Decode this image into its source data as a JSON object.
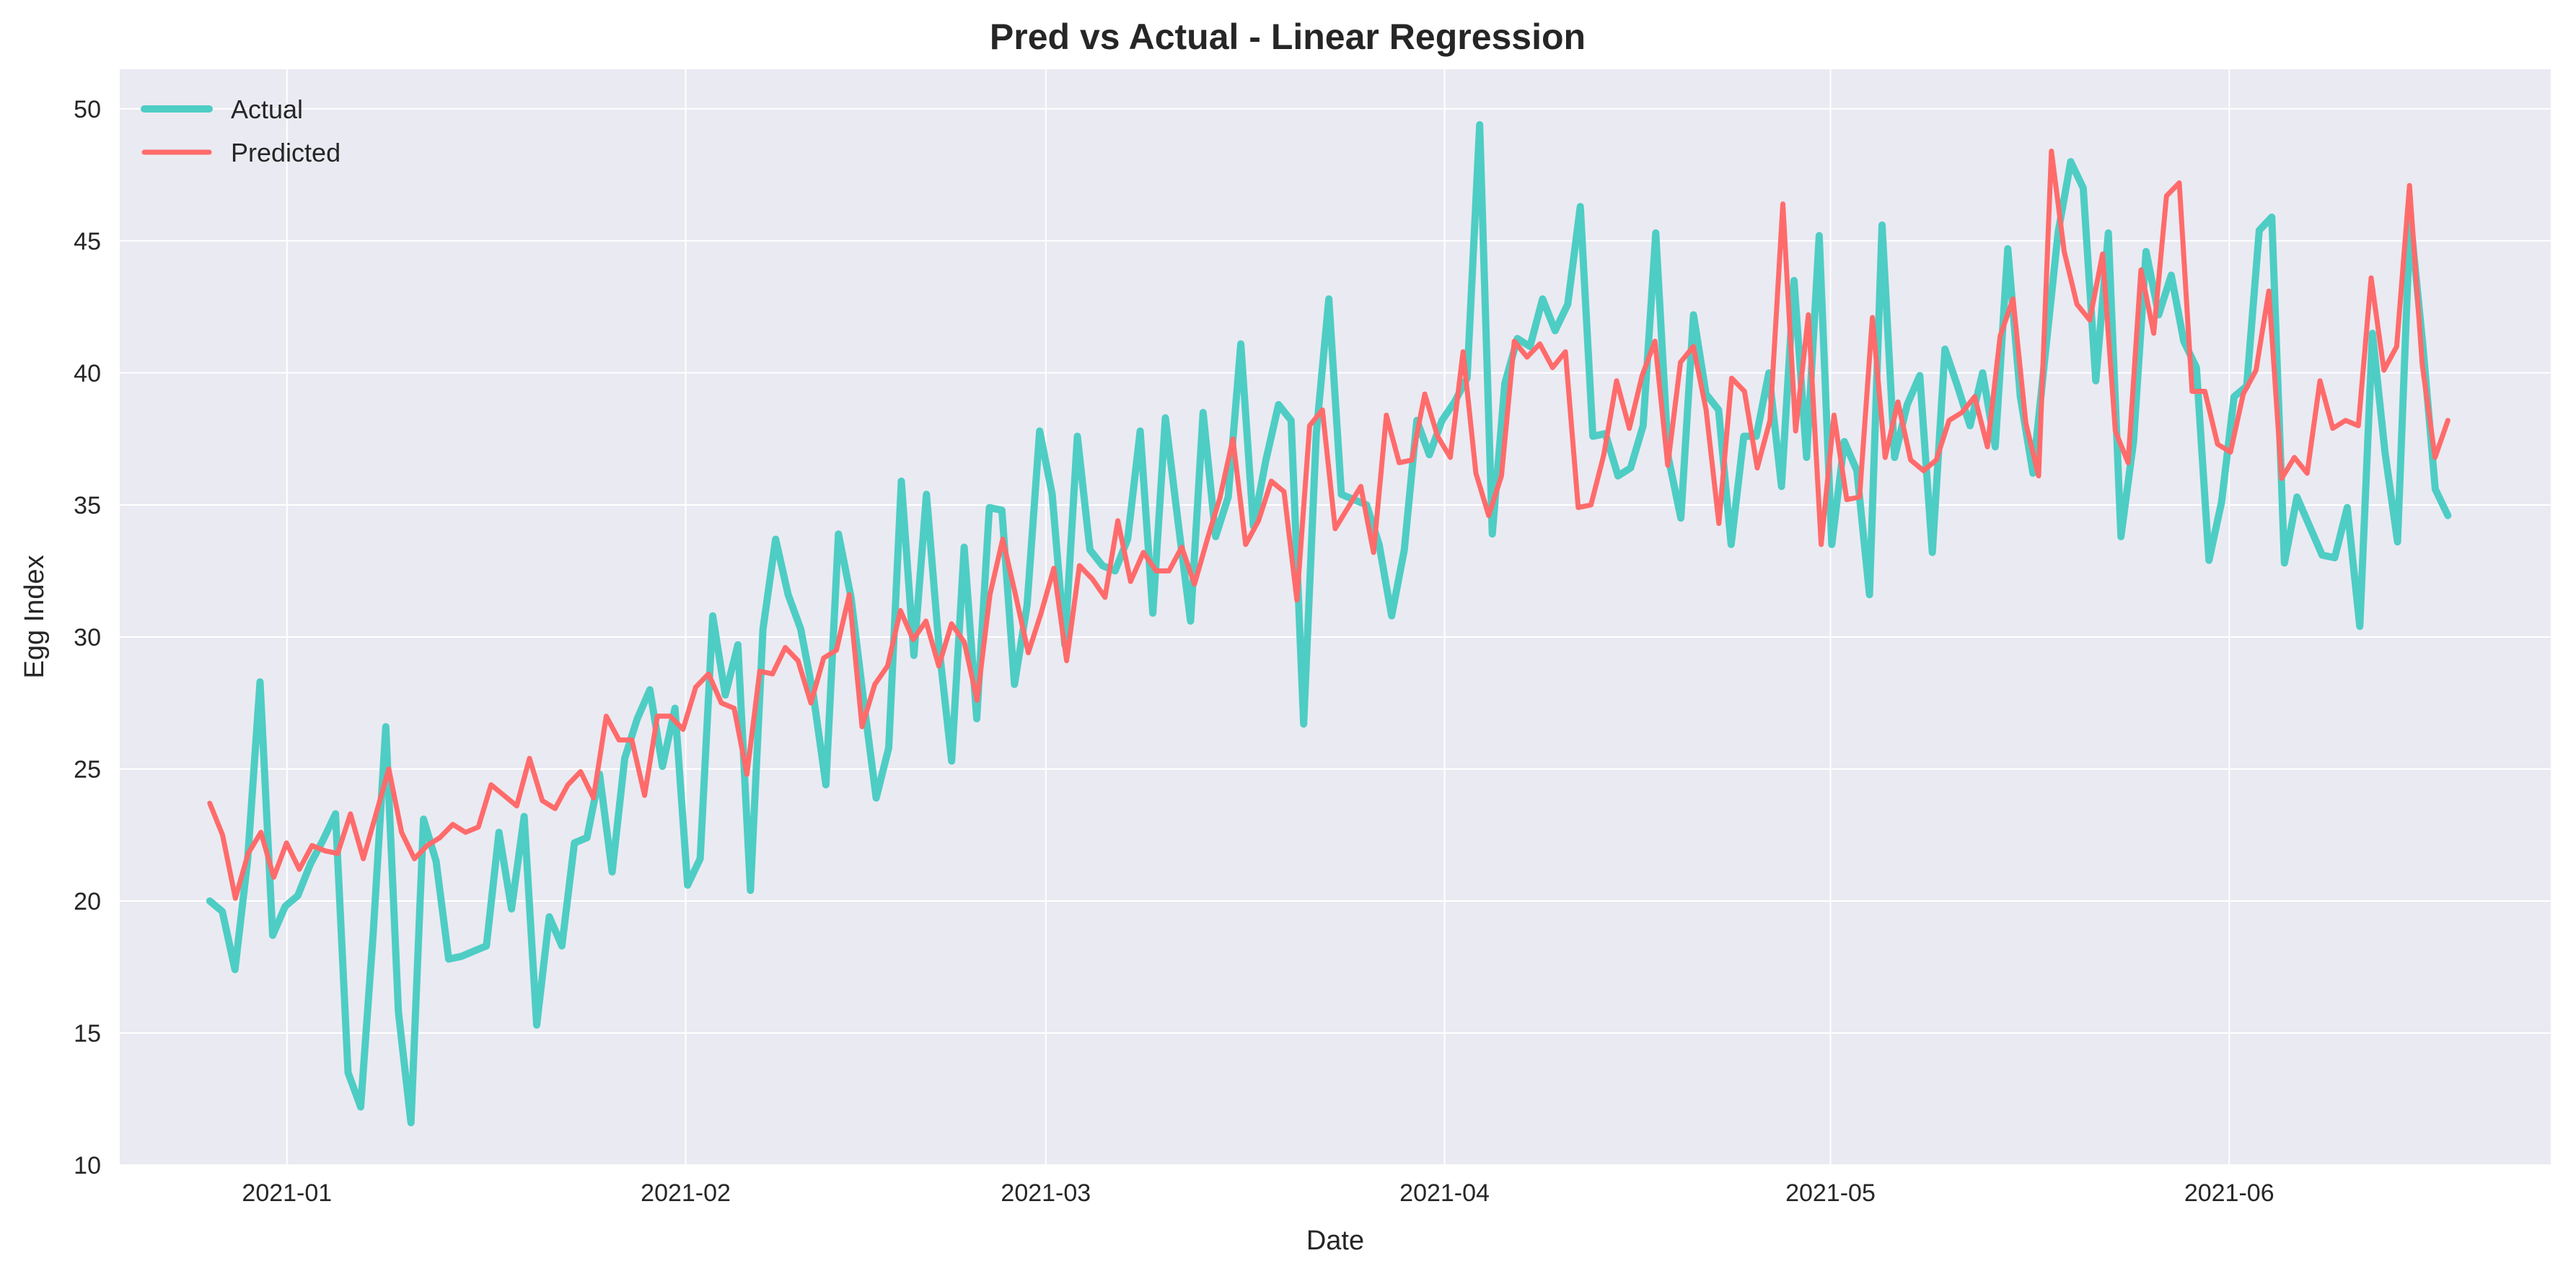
{
  "chart_data": {
    "type": "line",
    "title": "Pred vs Actual - Linear Regression",
    "xlabel": "Date",
    "ylabel": "Egg Index",
    "xlim": [
      "2020-12-19",
      "2021-06-26"
    ],
    "ylim": [
      10,
      51.5
    ],
    "y_ticks": [
      10,
      15,
      20,
      25,
      30,
      35,
      40,
      45,
      50
    ],
    "x_ticks": [
      {
        "date": "2021-01-01",
        "label": "2021-01"
      },
      {
        "date": "2021-02-01",
        "label": "2021-02"
      },
      {
        "date": "2021-03-01",
        "label": "2021-03"
      },
      {
        "date": "2021-04-01",
        "label": "2021-04"
      },
      {
        "date": "2021-05-01",
        "label": "2021-05"
      },
      {
        "date": "2021-06-01",
        "label": "2021-06"
      }
    ],
    "grid": true,
    "legend_position": "top-left",
    "x_start": "2020-12-26",
    "x_end": "2021-06-18",
    "series": [
      {
        "name": "Actual",
        "color": "#4ecdc4",
        "values": [
          20.0,
          19.6,
          17.4,
          21.5,
          28.3,
          18.7,
          19.8,
          20.2,
          21.4,
          22.3,
          23.3,
          13.5,
          12.2,
          18.8,
          26.6,
          15.8,
          11.6,
          23.1,
          21.5,
          17.8,
          17.9,
          18.1,
          18.3,
          22.6,
          19.7,
          23.2,
          15.3,
          19.4,
          18.3,
          22.2,
          22.4,
          24.8,
          21.1,
          25.4,
          26.9,
          28.0,
          25.1,
          27.3,
          20.6,
          21.6,
          30.8,
          27.8,
          29.7,
          20.4,
          30.3,
          33.7,
          31.6,
          30.3,
          27.8,
          24.4,
          33.9,
          31.5,
          27.6,
          23.9,
          25.8,
          35.9,
          29.3,
          35.4,
          29.6,
          25.3,
          33.4,
          26.9,
          34.9,
          34.8,
          28.2,
          31.2,
          37.8,
          35.4,
          29.7,
          37.6,
          33.3,
          32.7,
          32.5,
          33.7,
          37.8,
          30.9,
          38.3,
          34.4,
          30.6,
          38.5,
          33.8,
          35.3,
          41.1,
          34.2,
          36.7,
          38.8,
          38.2,
          26.7,
          37.7,
          42.8,
          35.4,
          35.2,
          35.0,
          33.5,
          30.8,
          33.3,
          38.2,
          36.9,
          38.2,
          38.9,
          39.8,
          49.4,
          33.9,
          39.6,
          41.3,
          41.0,
          42.8,
          41.6,
          42.6,
          46.3,
          37.6,
          37.7,
          36.1,
          36.4,
          38.0,
          45.3,
          36.8,
          34.5,
          42.2,
          39.2,
          38.6,
          33.5,
          37.6,
          37.6,
          40.0,
          35.7,
          43.5,
          36.8,
          45.2,
          33.5,
          37.4,
          36.3,
          31.6,
          45.6,
          36.8,
          38.8,
          39.9,
          33.2,
          40.9,
          39.5,
          38.0,
          40.0,
          37.2,
          44.7,
          39.1,
          36.2,
          40.8,
          45.3,
          48.0,
          47.0,
          39.7,
          45.3,
          33.8,
          37.4,
          44.6,
          42.2,
          43.7,
          41.2,
          40.2,
          32.9,
          35.1,
          39.1,
          39.5,
          45.4,
          45.9,
          32.8,
          35.3,
          34.2,
          33.1,
          33.0,
          34.9,
          30.4,
          41.5,
          37.0,
          33.6,
          45.9,
          41.1,
          35.6,
          34.6
        ]
      },
      {
        "name": "Predicted",
        "color": "#ff6b6b",
        "values": [
          23.7,
          22.5,
          20.1,
          21.8,
          22.6,
          20.9,
          22.2,
          21.2,
          22.1,
          21.9,
          21.8,
          23.3,
          21.6,
          23.3,
          25.0,
          22.6,
          21.6,
          22.1,
          22.4,
          22.9,
          22.6,
          22.8,
          24.4,
          24.0,
          23.6,
          25.4,
          23.8,
          23.5,
          24.4,
          24.9,
          23.9,
          27.0,
          26.1,
          26.1,
          24.0,
          27.0,
          27.0,
          26.5,
          28.1,
          28.6,
          27.5,
          27.3,
          24.8,
          28.7,
          28.6,
          29.6,
          29.1,
          27.5,
          29.2,
          29.5,
          31.6,
          26.6,
          28.2,
          28.9,
          31.0,
          29.9,
          30.6,
          28.9,
          30.5,
          29.8,
          27.6,
          31.6,
          33.7,
          31.6,
          29.4,
          30.9,
          32.6,
          29.1,
          32.7,
          32.2,
          31.5,
          34.4,
          32.1,
          33.2,
          32.5,
          32.5,
          33.4,
          32.0,
          33.7,
          35.3,
          37.5,
          33.5,
          34.4,
          35.9,
          35.5,
          31.4,
          38.0,
          38.6,
          34.1,
          34.9,
          35.7,
          33.2,
          38.4,
          36.6,
          36.7,
          39.2,
          37.6,
          36.8,
          40.8,
          36.2,
          34.6,
          36.1,
          41.2,
          40.6,
          41.1,
          40.2,
          40.8,
          34.9,
          35.0,
          36.9,
          39.7,
          37.9,
          39.9,
          41.2,
          36.5,
          40.4,
          41.0,
          38.6,
          34.3,
          39.8,
          39.3,
          36.4,
          38.2,
          46.4,
          37.8,
          42.2,
          33.5,
          38.4,
          35.2,
          35.3,
          42.1,
          36.8,
          38.9,
          36.7,
          36.3,
          36.7,
          38.2,
          38.5,
          39.1,
          37.2,
          41.4,
          42.8,
          38.1,
          36.1,
          48.4,
          44.6,
          42.6,
          42.0,
          44.5,
          37.8,
          36.6,
          43.9,
          41.5,
          46.7,
          47.2,
          39.3,
          39.3,
          37.3,
          37.0,
          39.2,
          40.1,
          43.1,
          36.0,
          36.8,
          36.2,
          39.7,
          37.9,
          38.2,
          38.0,
          43.6,
          40.1,
          41.0,
          47.1,
          40.3,
          36.8,
          38.2
        ]
      }
    ]
  }
}
